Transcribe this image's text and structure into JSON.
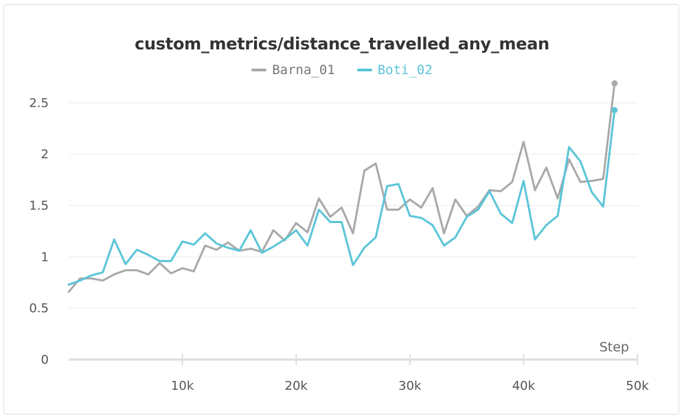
{
  "chart_data": {
    "type": "line",
    "title": "custom_metrics/distance_travelled_any_mean",
    "xlabel": "Step",
    "ylabel": "",
    "xlim": [
      0,
      50000
    ],
    "ylim": [
      0,
      2.7
    ],
    "grid": true,
    "legend_position": "top-center",
    "x_ticks": [
      {
        "value": 10000,
        "label": "10k"
      },
      {
        "value": 20000,
        "label": "20k"
      },
      {
        "value": 30000,
        "label": "30k"
      },
      {
        "value": 40000,
        "label": "40k"
      },
      {
        "value": 50000,
        "label": "50k"
      }
    ],
    "y_ticks": [
      {
        "value": 0,
        "label": "0"
      },
      {
        "value": 0.5,
        "label": "0.5"
      },
      {
        "value": 1,
        "label": "1"
      },
      {
        "value": 1.5,
        "label": "1.5"
      },
      {
        "value": 2,
        "label": "2"
      },
      {
        "value": 2.5,
        "label": "2.5"
      }
    ],
    "x": [
      0,
      1000,
      2000,
      3000,
      4000,
      5000,
      6000,
      7000,
      8000,
      9000,
      10000,
      11000,
      12000,
      13000,
      14000,
      15000,
      16000,
      17000,
      18000,
      19000,
      20000,
      21000,
      22000,
      23000,
      24000,
      25000,
      26000,
      27000,
      28000,
      29000,
      30000,
      31000,
      32000,
      33000,
      34000,
      35000,
      36000,
      37000,
      38000,
      39000,
      40000,
      41000,
      42000,
      43000,
      44000,
      45000,
      46000,
      47000,
      48000,
      49000,
      50000
    ],
    "series": [
      {
        "name": "Barna_01",
        "color": "#a9a9a9",
        "values": [
          0.66,
          0.79,
          0.79,
          0.77,
          0.83,
          0.87,
          0.87,
          0.83,
          0.94,
          0.84,
          0.89,
          0.86,
          1.11,
          1.07,
          1.14,
          1.06,
          1.08,
          1.05,
          1.26,
          1.16,
          1.33,
          1.24,
          1.57,
          1.39,
          1.48,
          1.23,
          1.84,
          1.91,
          1.46,
          1.46,
          1.56,
          1.48,
          1.67,
          1.23,
          1.56,
          1.4,
          1.49,
          1.65,
          1.64,
          1.73,
          2.12,
          1.65,
          1.87,
          1.57,
          1.95,
          1.73,
          1.74,
          1.76,
          2.69,
          null,
          null
        ]
      },
      {
        "name": "Boti_02",
        "color": "#5bc5d8",
        "values": [
          0.73,
          0.77,
          0.82,
          0.85,
          1.17,
          0.93,
          1.07,
          1.02,
          0.96,
          0.96,
          1.15,
          1.12,
          1.23,
          1.13,
          1.09,
          1.06,
          1.26,
          1.04,
          1.1,
          1.17,
          1.26,
          1.11,
          1.46,
          1.34,
          1.34,
          0.92,
          1.09,
          1.19,
          1.69,
          1.71,
          1.4,
          1.38,
          1.31,
          1.11,
          1.19,
          1.39,
          1.46,
          1.64,
          1.42,
          1.33,
          1.74,
          1.17,
          1.31,
          1.4,
          2.07,
          1.93,
          1.63,
          1.49,
          2.43,
          null,
          null
        ]
      }
    ]
  }
}
